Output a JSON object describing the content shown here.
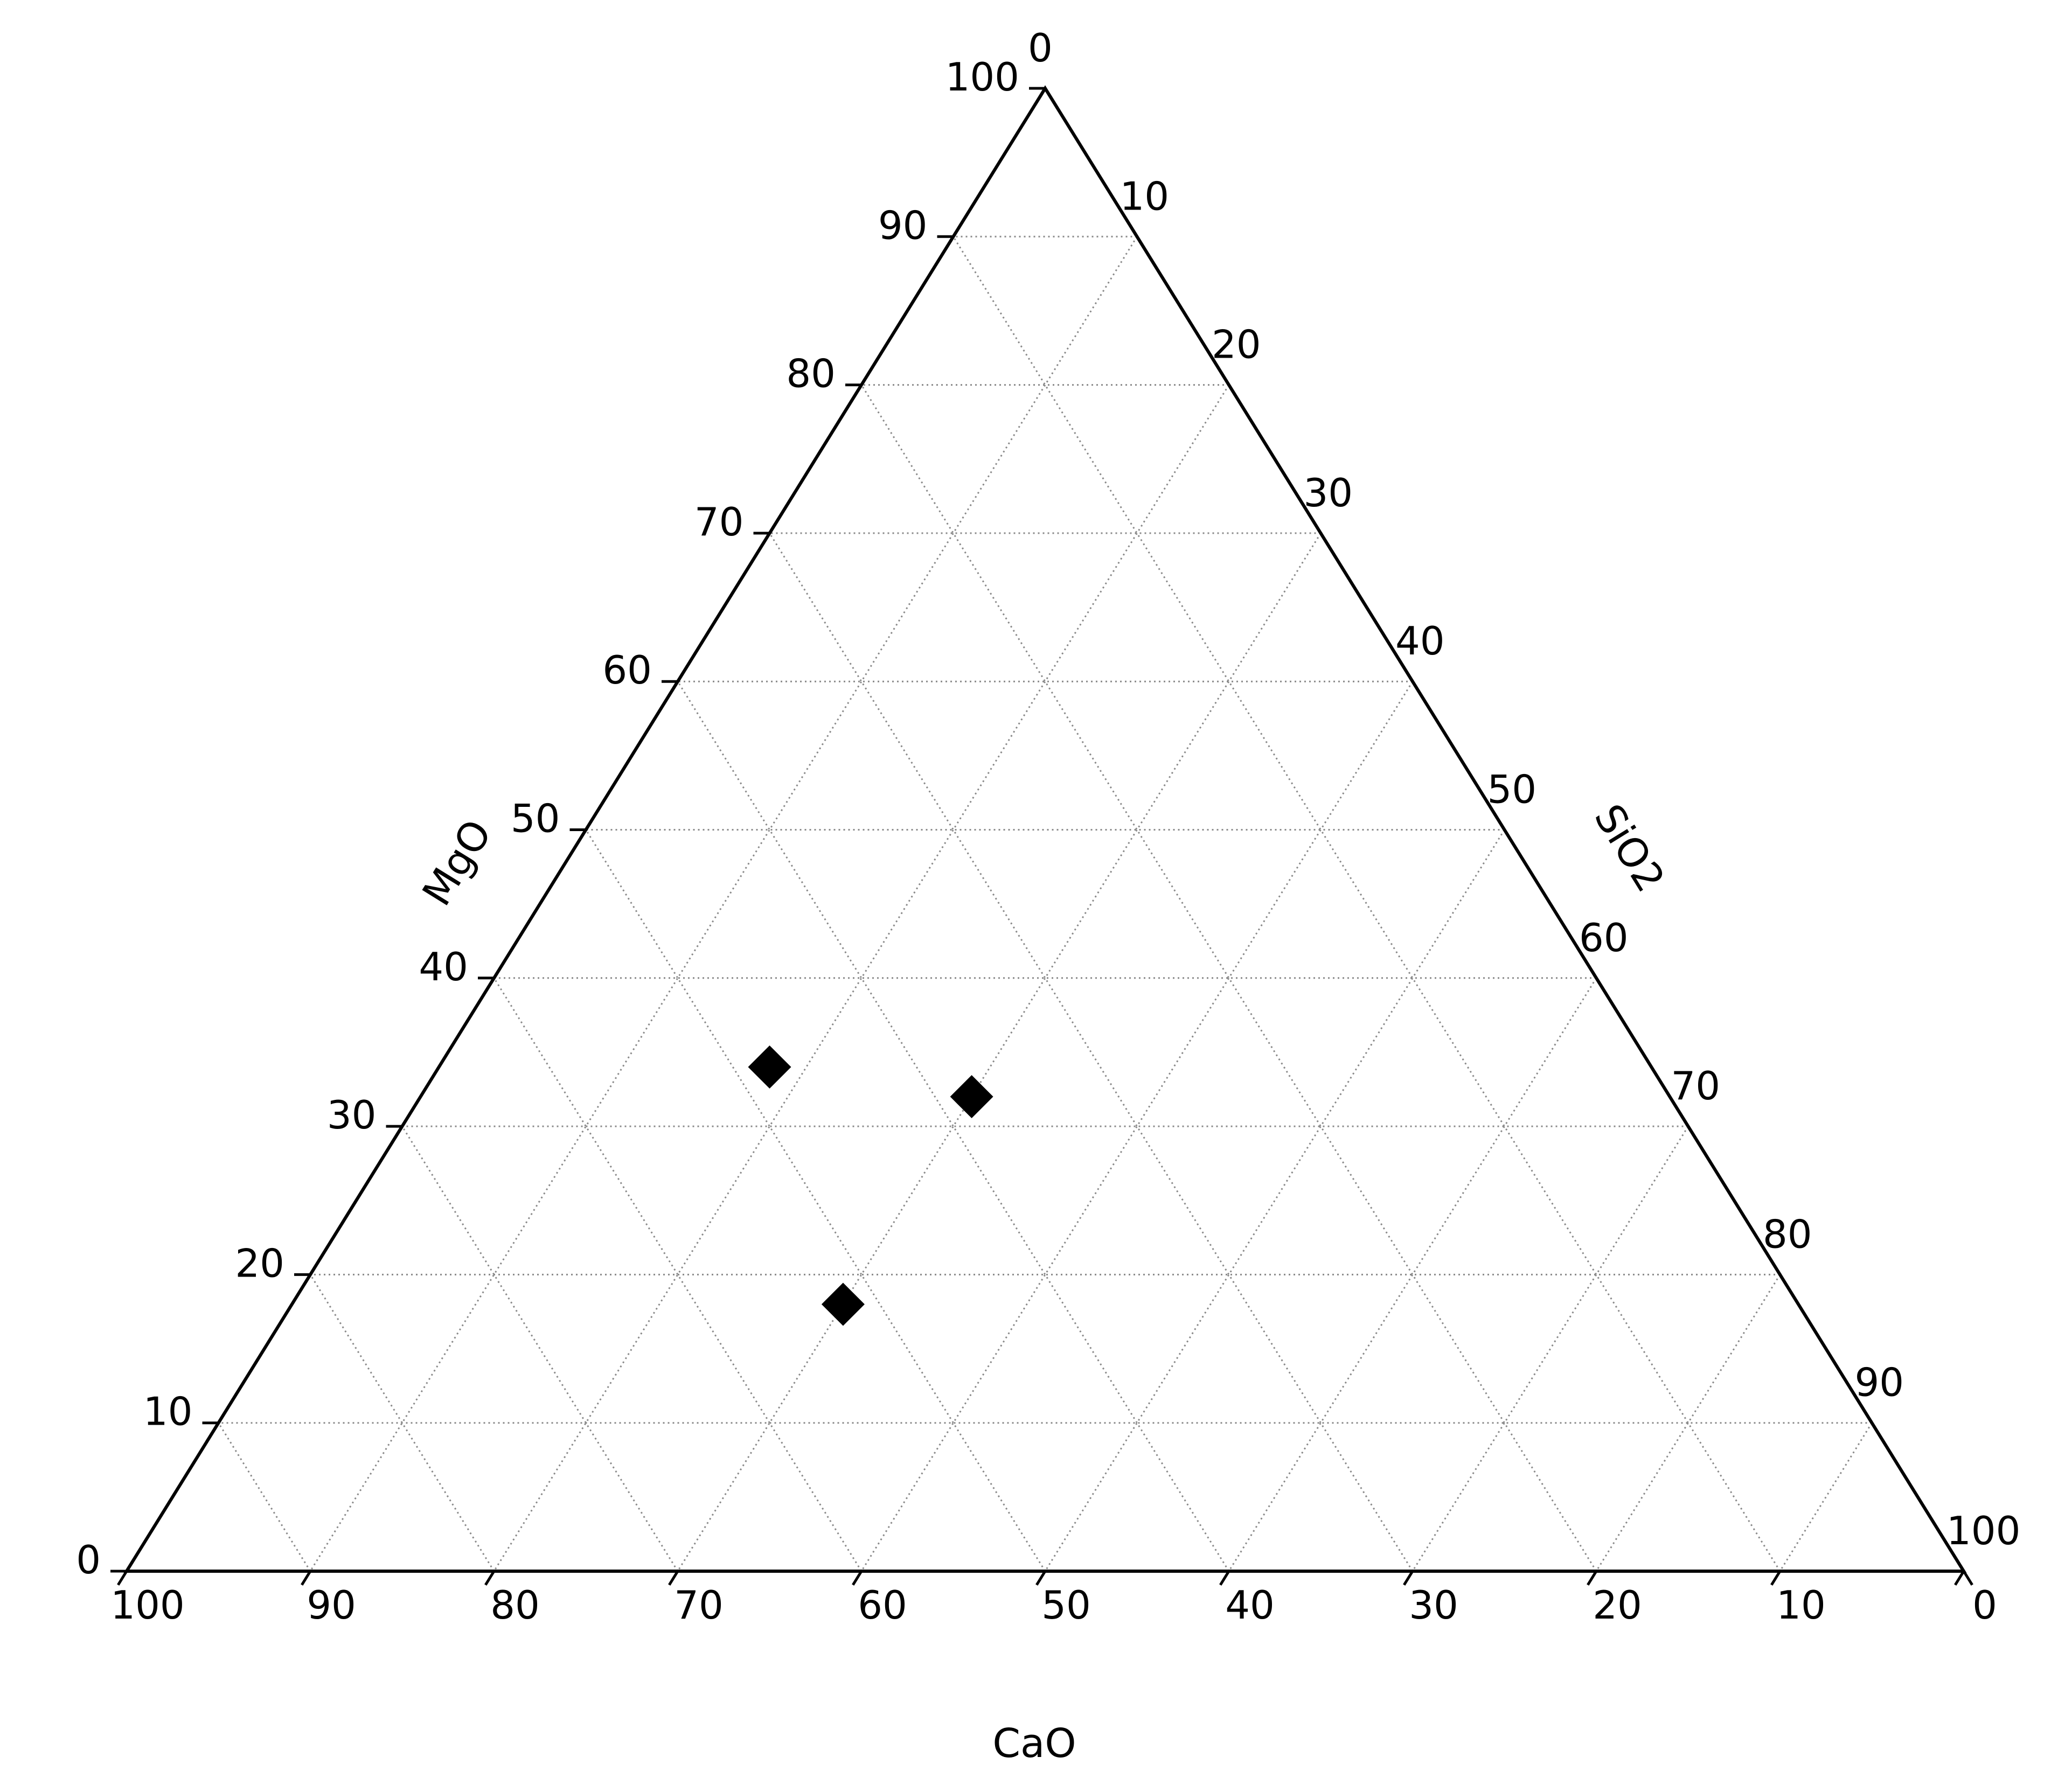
{
  "chart_data": {
    "type": "scatter",
    "subtype": "ternary",
    "axes": {
      "bottom": {
        "label": "CaO",
        "ticks": [
          "100",
          "90",
          "80",
          "70",
          "60",
          "50",
          "40",
          "30",
          "20",
          "10",
          "0"
        ]
      },
      "left": {
        "label": "MgO",
        "ticks": [
          "0",
          "10",
          "20",
          "30",
          "40",
          "50",
          "60",
          "70",
          "80",
          "90",
          "100"
        ]
      },
      "right": {
        "label": "SiO2",
        "ticks": [
          "0",
          "10",
          "20",
          "30",
          "40",
          "50",
          "60",
          "70",
          "80",
          "90",
          "100"
        ]
      }
    },
    "grid": true,
    "grid_step": 10,
    "marker": "diamond",
    "marker_color": "#000000",
    "points": [
      {
        "CaO": 48,
        "MgO": 34,
        "SiO2": 18
      },
      {
        "CaO": 38,
        "MgO": 32,
        "SiO2": 30
      },
      {
        "CaO": 52,
        "MgO": 18,
        "SiO2": 30
      }
    ]
  }
}
